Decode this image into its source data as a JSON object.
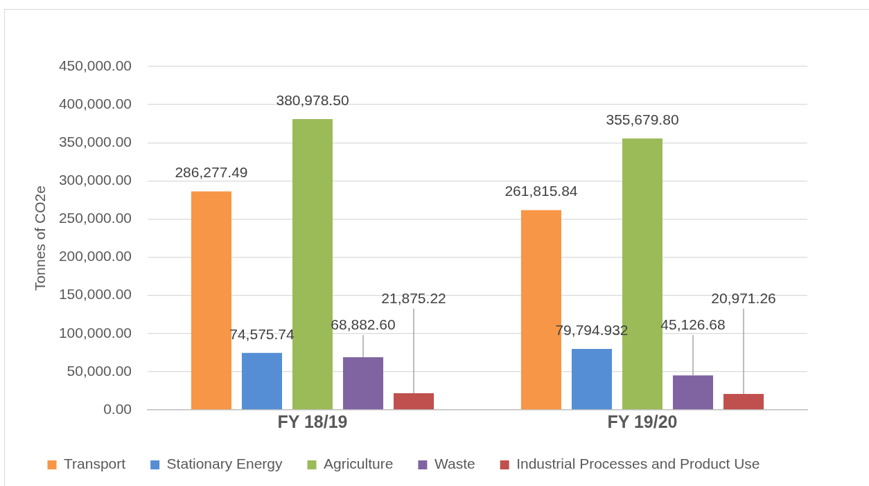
{
  "chart_data": {
    "type": "bar",
    "ylabel": "Tonnes of CO2e",
    "categories": [
      "FY 18/19",
      "FY 19/20"
    ],
    "series": [
      {
        "name": "Transport",
        "color": "#f79646",
        "values": [
          286277.49,
          261815.84
        ],
        "value_labels": [
          "286,277.49",
          "261,815.84"
        ]
      },
      {
        "name": "Stationary Energy",
        "color": "#558ed5",
        "values": [
          74575.74,
          79794.932
        ],
        "value_labels": [
          "74,575.74",
          "79,794.932"
        ]
      },
      {
        "name": "Agriculture",
        "color": "#9bbb59",
        "values": [
          380978.5,
          355679.8
        ],
        "value_labels": [
          "380,978.50",
          "355,679.80"
        ]
      },
      {
        "name": "Waste",
        "color": "#8064a2",
        "values": [
          68882.6,
          45126.68
        ],
        "value_labels": [
          "68,882.60",
          "45,126.68"
        ]
      },
      {
        "name": "Industrial Processes and Product Use",
        "color": "#c0504d",
        "values": [
          21875.22,
          20971.26
        ],
        "value_labels": [
          "21,875.22",
          "20,971.26"
        ]
      }
    ],
    "ylim": [
      0,
      450000
    ],
    "yticks": [
      {
        "value": 0,
        "label": "0.00"
      },
      {
        "value": 50000,
        "label": "50,000.00"
      },
      {
        "value": 100000,
        "label": "100,000.00"
      },
      {
        "value": 150000,
        "label": "150,000.00"
      },
      {
        "value": 200000,
        "label": "200,000.00"
      },
      {
        "value": 250000,
        "label": "250,000.00"
      },
      {
        "value": 300000,
        "label": "300,000.00"
      },
      {
        "value": 350000,
        "label": "350,000.00"
      },
      {
        "value": 400000,
        "label": "400,000.00"
      },
      {
        "value": 450000,
        "label": "450,000.00"
      }
    ],
    "grid": "y",
    "legend": "bottom"
  }
}
